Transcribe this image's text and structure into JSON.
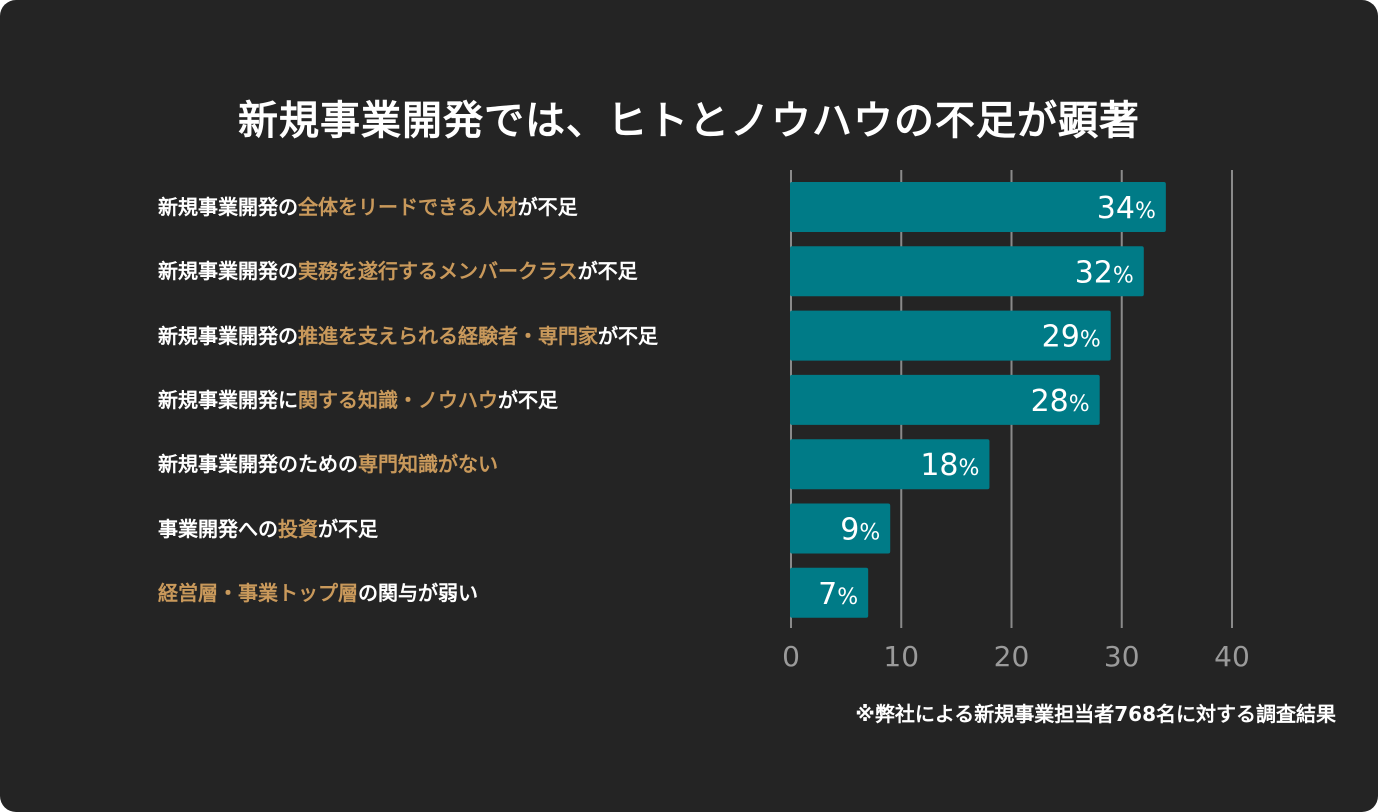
{
  "chart_data": {
    "type": "bar",
    "orientation": "horizontal",
    "title": "新規事業開発では、ヒトとノウハウの不足が顕著",
    "categories": [
      {
        "segments": [
          {
            "text": "新規事業開発の",
            "hl": false
          },
          {
            "text": "全体をリードできる人材",
            "hl": true
          },
          {
            "text": "が不足",
            "hl": false
          }
        ]
      },
      {
        "segments": [
          {
            "text": "新規事業開発の",
            "hl": false
          },
          {
            "text": "実務を遂行するメンバークラス",
            "hl": true
          },
          {
            "text": "が不足",
            "hl": false
          }
        ]
      },
      {
        "segments": [
          {
            "text": "新規事業開発の",
            "hl": false
          },
          {
            "text": "推進を支えられる経験者・専門家",
            "hl": true
          },
          {
            "text": "が不足",
            "hl": false
          }
        ]
      },
      {
        "segments": [
          {
            "text": "新規事業開発に",
            "hl": false
          },
          {
            "text": "関する知識・ノウハウ",
            "hl": true
          },
          {
            "text": "が不足",
            "hl": false
          }
        ]
      },
      {
        "segments": [
          {
            "text": "新規事業開発のための",
            "hl": false
          },
          {
            "text": "専門知識がない",
            "hl": true
          }
        ]
      },
      {
        "segments": [
          {
            "text": "事業開発への",
            "hl": false
          },
          {
            "text": "投資",
            "hl": true
          },
          {
            "text": "が不足",
            "hl": false
          }
        ]
      },
      {
        "segments": [
          {
            "text": "経営層・事業トップ層",
            "hl": true
          },
          {
            "text": "の関与が弱い",
            "hl": false
          }
        ]
      }
    ],
    "values": [
      34,
      32,
      29,
      28,
      18,
      9,
      7
    ],
    "value_suffix": "%",
    "xlim": [
      0,
      40
    ],
    "xticks": [
      "0",
      "10",
      "20",
      "30",
      "40"
    ],
    "grid": true,
    "colors": {
      "bar": "#007b87",
      "highlight_text": "#c9995b",
      "text": "#ffffff",
      "tick": "#9a9a9a",
      "grid": "#8a8a8a",
      "background": "#242424"
    },
    "footnote": "※弊社による新規事業担当者768名に対する調査結果"
  }
}
